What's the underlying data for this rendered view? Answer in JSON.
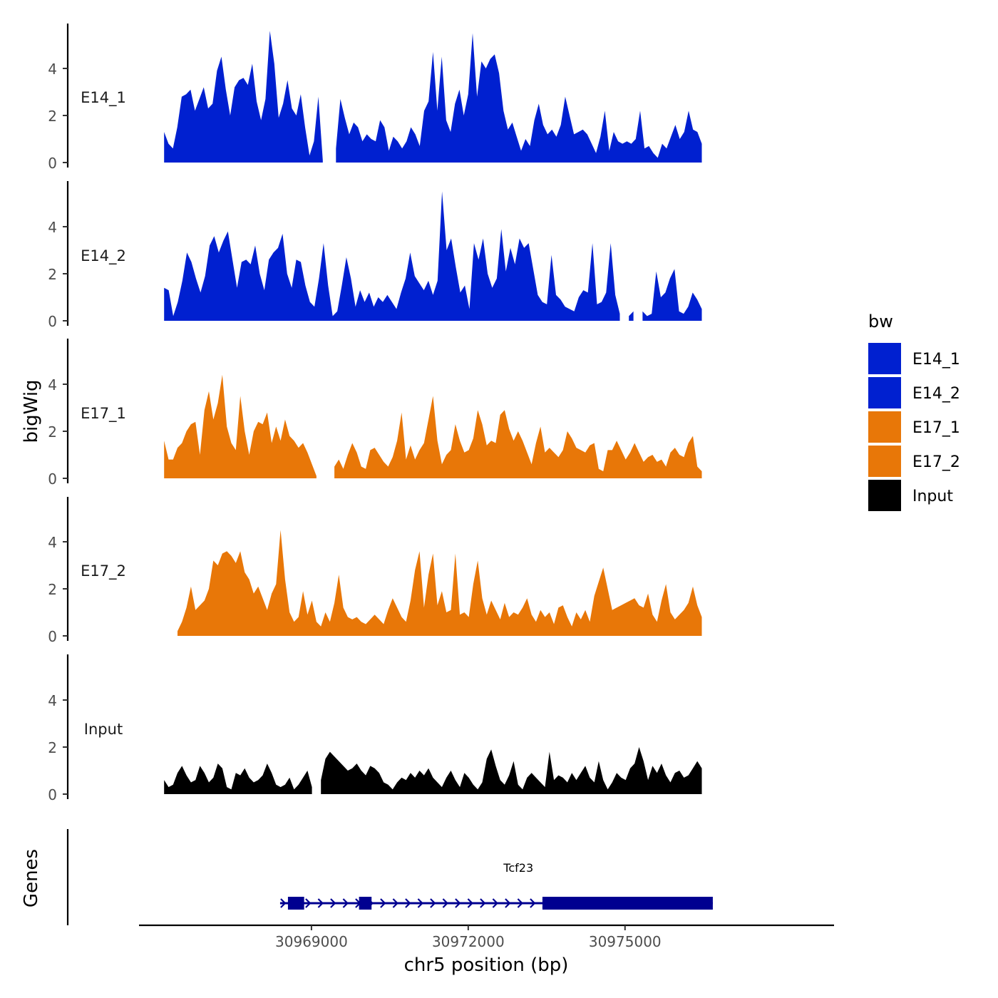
{
  "chart_data": {
    "type": "area",
    "title": "",
    "xlabel": "chr5 position (bp)",
    "ylabel": "bigWig",
    "genes_label": "Genes",
    "xlim": [
      30965700,
      30979000
    ],
    "ylim": [
      0,
      6
    ],
    "yticks": [
      0,
      2,
      4
    ],
    "ytick_labels": [
      "0",
      "2",
      "4"
    ],
    "xticks": [
      30969000,
      30972000,
      30975000
    ],
    "xtick_labels": [
      "30969000",
      "30972000",
      "30975000"
    ],
    "legend": {
      "title": "bw",
      "position": "right",
      "items": [
        {
          "label": "E14_1",
          "color": "#0020d0"
        },
        {
          "label": "E14_2",
          "color": "#0020d0"
        },
        {
          "label": "E17_1",
          "color": "#e87708"
        },
        {
          "label": "E17_2",
          "color": "#e87708"
        },
        {
          "label": "Input",
          "color": "#000000"
        }
      ]
    },
    "series": [
      {
        "name": "E14_1",
        "color": "#0020d0",
        "x_start": 30966180,
        "x_end": 30976470,
        "values": [
          1.3,
          0.8,
          0.6,
          1.5,
          2.8,
          2.9,
          3.1,
          2.2,
          2.7,
          3.2,
          2.3,
          2.5,
          3.9,
          4.5,
          3.1,
          2.0,
          3.2,
          3.5,
          3.6,
          3.3,
          4.2,
          2.6,
          1.8,
          2.7,
          5.6,
          4.2,
          1.9,
          2.5,
          3.5,
          2.3,
          2.0,
          2.9,
          1.5,
          0.3,
          0.9,
          2.8,
          0.1,
          -1,
          -1,
          0.6,
          2.7,
          1.9,
          1.2,
          1.7,
          1.5,
          0.9,
          1.2,
          1.0,
          0.9,
          1.8,
          1.5,
          0.5,
          1.1,
          0.9,
          0.6,
          0.9,
          1.5,
          1.2,
          0.7,
          2.2,
          2.6,
          4.7,
          2.2,
          4.5,
          1.8,
          1.3,
          2.5,
          3.1,
          2.0,
          2.9,
          5.5,
          2.8,
          4.3,
          4.0,
          4.4,
          4.6,
          3.8,
          2.2,
          1.4,
          1.7,
          1.1,
          0.5,
          1.0,
          0.7,
          1.8,
          2.5,
          1.6,
          1.2,
          1.4,
          1.1,
          1.6,
          2.8,
          2.0,
          1.2,
          1.3,
          1.4,
          1.2,
          0.8,
          0.4,
          1.1,
          2.2,
          0.5,
          1.3,
          0.9,
          0.8,
          0.9,
          0.8,
          1.0,
          2.2,
          0.6,
          0.7,
          0.4,
          0.2,
          0.8,
          0.6,
          1.1,
          1.6,
          1.0,
          1.3,
          2.2,
          1.4,
          1.3,
          0.8
        ]
      },
      {
        "name": "E14_2",
        "color": "#0020d0",
        "x_start": 30966180,
        "x_end": 30976470,
        "values": [
          1.4,
          1.3,
          0.2,
          0.8,
          1.7,
          2.9,
          2.5,
          1.8,
          1.2,
          1.9,
          3.2,
          3.6,
          2.9,
          3.4,
          3.8,
          2.6,
          1.4,
          2.5,
          2.6,
          2.4,
          3.2,
          2.0,
          1.3,
          2.6,
          2.9,
          3.1,
          3.7,
          2.0,
          1.4,
          2.6,
          2.5,
          1.5,
          0.8,
          0.6,
          1.8,
          3.3,
          1.5,
          0.2,
          0.4,
          1.5,
          2.7,
          1.8,
          0.6,
          1.3,
          0.8,
          1.2,
          0.6,
          1.0,
          0.8,
          1.1,
          0.8,
          0.5,
          1.2,
          1.8,
          2.9,
          1.9,
          1.6,
          1.3,
          1.7,
          1.1,
          1.7,
          5.5,
          3.0,
          3.5,
          2.3,
          1.2,
          1.5,
          0.5,
          3.3,
          2.6,
          3.5,
          2.0,
          1.4,
          1.8,
          3.9,
          2.1,
          3.1,
          2.4,
          3.5,
          3.1,
          3.3,
          2.2,
          1.1,
          0.8,
          0.7,
          2.8,
          1.1,
          0.9,
          0.6,
          0.5,
          0.4,
          1.0,
          1.3,
          1.2,
          3.3,
          0.7,
          0.8,
          1.2,
          3.3,
          1.1,
          0.3,
          -1,
          0.2,
          0.4,
          -1,
          0.4,
          0.2,
          0.3,
          2.1,
          1.0,
          1.2,
          1.8,
          2.2,
          0.4,
          0.3,
          0.6,
          1.2,
          0.9,
          0.5
        ]
      },
      {
        "name": "E17_1",
        "color": "#e87708",
        "x_start": 30966180,
        "x_end": 30976470,
        "values": [
          1.6,
          0.8,
          0.8,
          1.3,
          1.5,
          2.0,
          2.3,
          2.4,
          1.0,
          2.9,
          3.7,
          2.5,
          3.2,
          4.4,
          2.2,
          1.5,
          1.2,
          3.5,
          2.0,
          1.0,
          2.0,
          2.4,
          2.3,
          2.8,
          1.5,
          2.2,
          1.6,
          2.5,
          1.8,
          1.6,
          1.3,
          1.5,
          1.1,
          0.6,
          0.1,
          -1,
          -1,
          -1,
          0.5,
          0.8,
          0.4,
          1.0,
          1.5,
          1.1,
          0.5,
          0.4,
          1.2,
          1.3,
          1.0,
          0.7,
          0.5,
          0.9,
          1.6,
          2.8,
          0.8,
          1.4,
          0.8,
          1.2,
          1.5,
          2.5,
          3.5,
          1.6,
          0.6,
          1.0,
          1.2,
          2.3,
          1.6,
          1.1,
          1.2,
          1.7,
          2.9,
          2.3,
          1.4,
          1.6,
          1.5,
          2.7,
          2.9,
          2.1,
          1.6,
          2.0,
          1.6,
          1.1,
          0.6,
          1.5,
          2.2,
          1.1,
          1.3,
          1.1,
          0.9,
          1.2,
          2.0,
          1.7,
          1.3,
          1.2,
          1.1,
          1.4,
          1.5,
          0.4,
          0.3,
          1.2,
          1.2,
          1.6,
          1.2,
          0.8,
          1.1,
          1.5,
          1.1,
          0.7,
          0.9,
          1.0,
          0.7,
          0.8,
          0.5,
          1.1,
          1.3,
          1.0,
          0.9,
          1.5,
          1.8,
          0.5,
          0.3
        ]
      },
      {
        "name": "E17_2",
        "color": "#e87708",
        "x_start": 30966180,
        "x_end": 30976470,
        "values": [
          0.05,
          -1,
          -1,
          0.2,
          0.6,
          1.2,
          2.1,
          1.1,
          1.3,
          1.5,
          2.0,
          3.2,
          3.0,
          3.5,
          3.6,
          3.4,
          3.1,
          3.6,
          2.7,
          2.4,
          1.8,
          2.1,
          1.6,
          1.1,
          1.8,
          2.2,
          4.5,
          2.4,
          1.0,
          0.6,
          0.8,
          1.9,
          0.9,
          1.5,
          0.6,
          0.4,
          1.0,
          0.6,
          1.4,
          2.6,
          1.2,
          0.8,
          0.7,
          0.8,
          0.6,
          0.5,
          0.7,
          0.9,
          0.7,
          0.5,
          1.1,
          1.6,
          1.2,
          0.8,
          0.6,
          1.5,
          2.8,
          3.6,
          1.2,
          2.6,
          3.5,
          1.3,
          1.9,
          1.0,
          1.1,
          3.5,
          0.9,
          1.0,
          0.8,
          2.2,
          3.2,
          1.6,
          0.9,
          1.5,
          1.1,
          0.7,
          1.4,
          0.8,
          1.0,
          0.9,
          1.2,
          1.6,
          0.9,
          0.6,
          1.1,
          0.8,
          1.0,
          0.5,
          1.2,
          1.3,
          0.8,
          0.4,
          1.0,
          0.7,
          1.1,
          0.6,
          1.7,
          2.3,
          2.9,
          2.0,
          1.1,
          1.2,
          1.3,
          1.4,
          1.5,
          1.6,
          1.3,
          1.2,
          1.8,
          0.9,
          0.6,
          1.5,
          2.2,
          1.0,
          0.7,
          0.9,
          1.1,
          1.4,
          2.1,
          1.3,
          0.8
        ]
      },
      {
        "name": "Input",
        "color": "#000000",
        "x_start": 30966180,
        "x_end": 30976470,
        "values": [
          0.6,
          0.3,
          0.4,
          0.9,
          1.2,
          0.8,
          0.5,
          0.6,
          1.2,
          0.9,
          0.5,
          0.7,
          1.3,
          1.1,
          0.3,
          0.2,
          0.9,
          0.8,
          1.1,
          0.7,
          0.5,
          0.6,
          0.8,
          1.3,
          0.9,
          0.4,
          0.3,
          0.4,
          0.7,
          0.2,
          0.4,
          0.7,
          1.0,
          0.3,
          -1,
          0.6,
          1.5,
          1.8,
          1.6,
          1.4,
          1.2,
          1.0,
          1.1,
          1.3,
          1.0,
          0.8,
          1.2,
          1.1,
          0.9,
          0.5,
          0.4,
          0.2,
          0.5,
          0.7,
          0.6,
          0.9,
          0.7,
          1.0,
          0.8,
          1.1,
          0.7,
          0.5,
          0.3,
          0.7,
          1.0,
          0.6,
          0.3,
          0.9,
          0.7,
          0.4,
          0.2,
          0.5,
          1.5,
          1.9,
          1.2,
          0.6,
          0.4,
          0.8,
          1.4,
          0.4,
          0.2,
          0.7,
          0.9,
          0.7,
          0.5,
          0.3,
          1.8,
          0.6,
          0.8,
          0.7,
          0.5,
          0.9,
          0.6,
          0.9,
          1.2,
          0.7,
          0.5,
          1.4,
          0.6,
          0.2,
          0.5,
          0.9,
          0.7,
          0.6,
          1.1,
          1.3,
          2.0,
          1.4,
          0.6,
          1.2,
          0.9,
          1.3,
          0.8,
          0.5,
          0.9,
          1.0,
          0.7,
          0.8,
          1.1,
          1.4,
          1.1
        ]
      }
    ],
    "genes": [
      {
        "name": "Tcf23",
        "strand": "+",
        "start": 30968400,
        "end": 30976680,
        "exons": [
          [
            30968550,
            30968860
          ],
          [
            30969910,
            30970150
          ],
          [
            30973420,
            30976680
          ]
        ]
      }
    ]
  }
}
